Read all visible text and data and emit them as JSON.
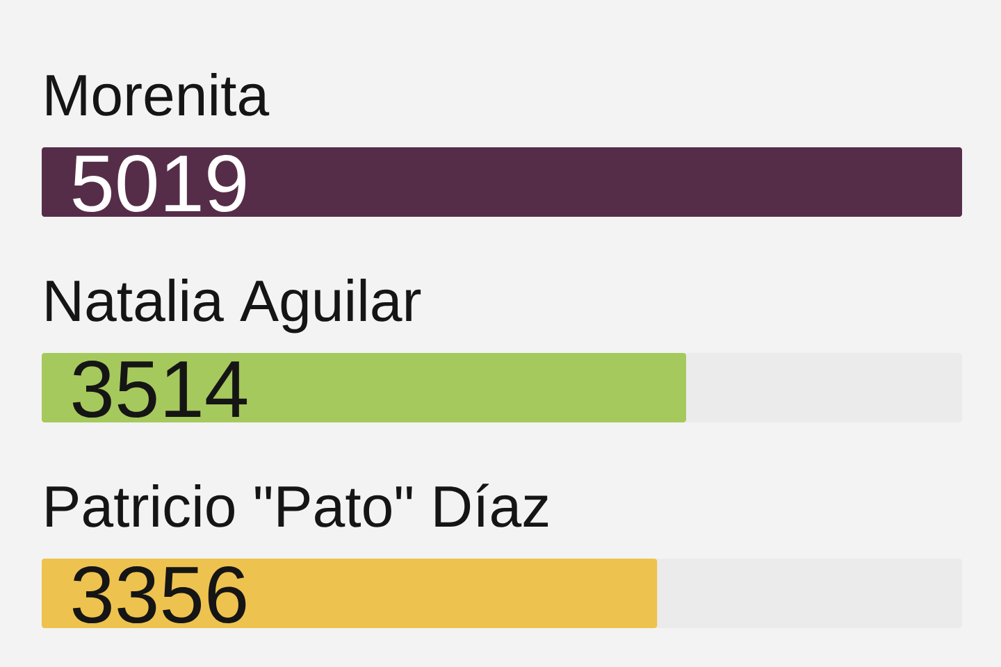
{
  "chart_data": {
    "type": "bar",
    "orientation": "horizontal",
    "categories": [
      "Morenita",
      "Natalia Aguilar",
      "Patricio \"Pato\" Díaz"
    ],
    "values": [
      5019,
      3514,
      3356
    ],
    "colors": [
      "#562d48",
      "#a5c95c",
      "#eec24e"
    ],
    "data_labels": true
  }
}
